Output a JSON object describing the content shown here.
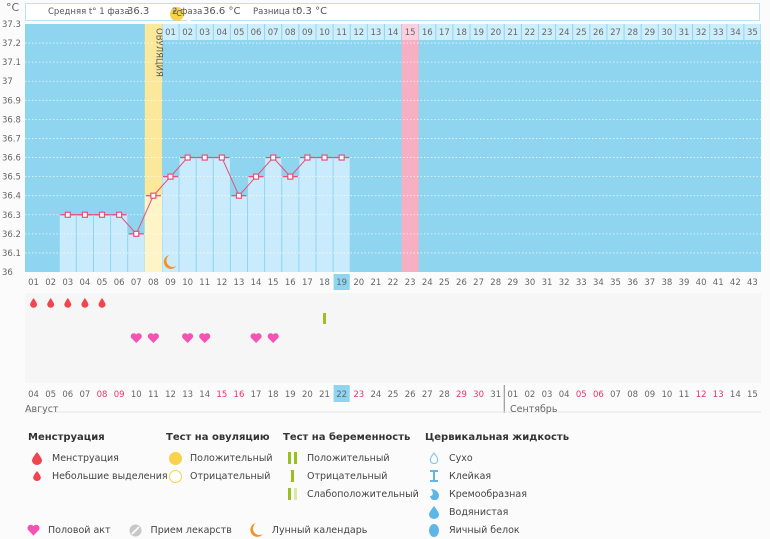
{
  "header": {
    "unit": "°C",
    "phase1_label": "Средняя t° 1 фаза",
    "phase1_value": "36.3",
    "ovulation_badge": "°C",
    "phase2_label": "2 фаза",
    "phase2_value": "36.6 °C",
    "diff_label": "Разница t°",
    "diff_value": "0.3 °C"
  },
  "chart_data": {
    "type": "line",
    "title": "",
    "ylabel": "°C",
    "ylim": [
      36,
      37.3
    ],
    "y_ticks": [
      "37.3",
      "37.2",
      "37.1",
      "37",
      "36.9",
      "36.8",
      "36.7",
      "36.6",
      "36.5",
      "36.4",
      "36.3",
      "36.2",
      "36.1",
      "36"
    ],
    "cycle_days": [
      "01",
      "02",
      "03",
      "04",
      "05",
      "06",
      "07",
      "08",
      "09",
      "10",
      "11",
      "12",
      "13",
      "14",
      "15",
      "16",
      "17",
      "18",
      "19",
      "20",
      "21",
      "22",
      "23",
      "24",
      "25",
      "26",
      "27",
      "28",
      "29",
      "30",
      "31",
      "32",
      "33",
      "34",
      "35",
      "36",
      "37",
      "38",
      "39",
      "40",
      "41",
      "42",
      "43"
    ],
    "temperatures": [
      null,
      null,
      36.3,
      36.3,
      36.3,
      36.3,
      36.2,
      36.4,
      36.5,
      36.6,
      36.6,
      36.6,
      36.4,
      36.5,
      36.6,
      36.5,
      36.6,
      36.6,
      36.6
    ],
    "ovulation_day_index": 7,
    "ovulation_label": "ОВУЛЯЦИЯ",
    "today_index": 18,
    "pink_day_index": 22,
    "post_ovulation_days": [
      "01",
      "02",
      "03",
      "04",
      "05",
      "06",
      "07",
      "08",
      "09",
      "10",
      "11",
      "12",
      "13",
      "14",
      "15",
      "16",
      "17",
      "18",
      "19",
      "20",
      "21",
      "22",
      "23",
      "24",
      "25",
      "26",
      "27",
      "28",
      "29",
      "30",
      "31",
      "32",
      "33",
      "34",
      "35"
    ],
    "menstruation_days": [
      0,
      1,
      2,
      3,
      4
    ],
    "pregnancy_test_negative_days": [
      17
    ],
    "intercourse_days": [
      6,
      7,
      9,
      10,
      13,
      14
    ],
    "moon_days": [
      8
    ],
    "calendar_dates": [
      "04",
      "05",
      "06",
      "07",
      "08",
      "09",
      "10",
      "11",
      "12",
      "13",
      "14",
      "15",
      "16",
      "17",
      "18",
      "19",
      "20",
      "21",
      "22",
      "23",
      "24",
      "25",
      "26",
      "27",
      "28",
      "29",
      "30",
      "31",
      "01",
      "02",
      "03",
      "04",
      "05",
      "06",
      "07",
      "08",
      "09",
      "10",
      "11",
      "12",
      "13",
      "14",
      "15"
    ],
    "weekend_date_indices": [
      4,
      5,
      11,
      12,
      19,
      25,
      26,
      32,
      33,
      39,
      40
    ],
    "month_break_index": 28,
    "months": [
      "Август",
      "Сентябрь"
    ]
  },
  "legend": {
    "menstruation": {
      "title": "Менструация",
      "items": [
        "Менструация",
        "Небольшие выделения"
      ]
    },
    "ovulation_test": {
      "title": "Тест на овуляцию",
      "items": [
        "Положительный",
        "Отрицательный"
      ]
    },
    "pregnancy_test": {
      "title": "Тест на беременность",
      "items": [
        "Положительный",
        "Отрицательный",
        "Слабоположительный"
      ]
    },
    "cervical": {
      "title": "Цервикальная жидкость",
      "items": [
        "Сухо",
        "Клейкая",
        "Кремообразная",
        "Водянистая",
        "Яичный белок"
      ]
    },
    "other": [
      "Половой акт",
      "Прием лекарств",
      "Лунный календарь"
    ]
  },
  "colors": {
    "chart_bg": "#8fd5f0",
    "bar": "#c9ebfb",
    "line": "#e8507a",
    "ovulation": "#fbe89a",
    "ovulation_light": "#fdf5c8",
    "pink": "#f7afc3",
    "drop": "#f0444e",
    "heart": "#f453b4",
    "test": "#98c11f",
    "moon": "#f39321",
    "today": "#8fd5f0",
    "weekend": "#e8326a"
  }
}
